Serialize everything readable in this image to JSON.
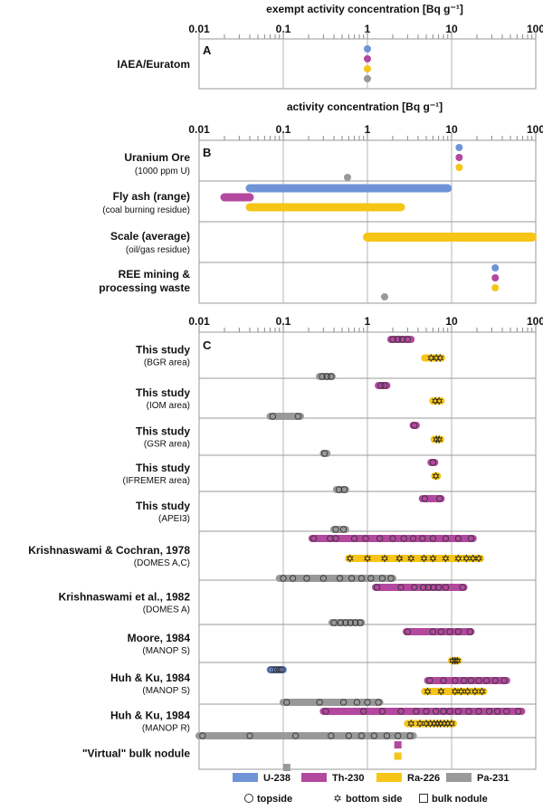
{
  "colors": {
    "U-238": "#6f93d6",
    "Th-230": "#b3489e",
    "Ra-226": "#f6c516",
    "Pa-231": "#999999",
    "grid": "#b5b5b5",
    "frame": "#9a9a9a"
  },
  "axis_ticks": [
    "0.01",
    "0.1",
    "1",
    "10",
    "100"
  ],
  "chart_data": [
    {
      "type": "scatter",
      "panel": "A",
      "xlabel": "exempt activity concentration [Bq g⁻¹]",
      "xscale": "log",
      "xlim": [
        0.01,
        100
      ],
      "rows": [
        {
          "title": "IAEA/Euratom",
          "subtitle": "",
          "points": [
            {
              "isotope": "U-238",
              "value": 1
            },
            {
              "isotope": "Th-230",
              "value": 1
            },
            {
              "isotope": "Ra-226",
              "value": 1
            },
            {
              "isotope": "Pa-231",
              "value": 1
            }
          ],
          "ranges": []
        }
      ]
    },
    {
      "type": "scatter",
      "panel": "B",
      "xlabel": "activity concentration [Bq g⁻¹]",
      "xscale": "log",
      "xlim": [
        0.01,
        100
      ],
      "rows": [
        {
          "title": "Uranium Ore",
          "subtitle": "(1000 ppm U)",
          "points": [
            {
              "isotope": "U-238",
              "value": 12.3
            },
            {
              "isotope": "Th-230",
              "value": 12.3
            },
            {
              "isotope": "Ra-226",
              "value": 12.3
            },
            {
              "isotope": "Pa-231",
              "value": 0.58
            }
          ],
          "ranges": []
        },
        {
          "title": "Fly ash (range)",
          "subtitle": "(coal burning residue)",
          "points": [],
          "ranges": [
            {
              "isotope": "U-238",
              "min": 0.04,
              "max": 9.0
            },
            {
              "isotope": "Th-230",
              "min": 0.02,
              "max": 0.04
            },
            {
              "isotope": "Ra-226",
              "min": 0.04,
              "max": 2.5
            }
          ]
        },
        {
          "title": "Scale (average)",
          "subtitle": "(oil/gas residue)",
          "points": [],
          "ranges": [
            {
              "isotope": "Ra-226",
              "min": 1.0,
              "max": 100
            }
          ]
        },
        {
          "title": "REE mining &",
          "subtitle": "processing waste",
          "subtitle_bold": true,
          "points": [
            {
              "isotope": "U-238",
              "value": 33
            },
            {
              "isotope": "Th-230",
              "value": 33
            },
            {
              "isotope": "Ra-226",
              "value": 33
            },
            {
              "isotope": "Pa-231",
              "value": 1.6
            }
          ],
          "ranges": []
        }
      ]
    },
    {
      "type": "scatter",
      "panel": "C",
      "xscale": "log",
      "xlim": [
        0.01,
        100
      ],
      "rows": [
        {
          "title": "This study",
          "subtitle": "(BGR area)",
          "groups": [
            {
              "isotope": "Th-230",
              "min": 1.9,
              "max": 3.3,
              "marker": "circle",
              "values": [
                2.0,
                2.3,
                2.6,
                3.0
              ]
            },
            {
              "isotope": "Ra-226",
              "min": 4.8,
              "max": 7.6,
              "marker": "star",
              "values": [
                5.7,
                6.6,
                7.3
              ]
            },
            {
              "isotope": "Pa-231",
              "min": 0.27,
              "max": 0.38,
              "marker": "circle",
              "values": [
                0.29,
                0.33,
                0.37
              ]
            }
          ]
        },
        {
          "title": "This study",
          "subtitle": "(IOM area)",
          "groups": [
            {
              "isotope": "Th-230",
              "min": 1.35,
              "max": 1.7,
              "marker": "circle",
              "values": [
                1.45,
                1.6
              ]
            },
            {
              "isotope": "Ra-226",
              "min": 6.0,
              "max": 7.5,
              "marker": "star",
              "values": [
                6.4,
                7.1
              ]
            },
            {
              "isotope": "Pa-231",
              "min": 0.07,
              "max": 0.16,
              "marker": "circle",
              "values": [
                0.075,
                0.15
              ]
            }
          ]
        },
        {
          "title": "This study",
          "subtitle": "(GSR area)",
          "groups": [
            {
              "isotope": "Th-230",
              "min": 3.5,
              "max": 3.8,
              "marker": "circle",
              "values": [
                3.6
              ]
            },
            {
              "isotope": "Ra-226",
              "min": 6.2,
              "max": 7.4,
              "marker": "star",
              "values": [
                6.6,
                7.1
              ]
            },
            {
              "isotope": "Pa-231",
              "min": 0.3,
              "max": 0.33,
              "marker": "circle",
              "values": [
                0.31
              ]
            }
          ]
        },
        {
          "title": "This study",
          "subtitle": "(IFREMER area)",
          "groups": [
            {
              "isotope": "Th-230",
              "min": 5.7,
              "max": 6.3,
              "marker": "circle",
              "values": [
                6.0
              ]
            },
            {
              "isotope": "Ra-226",
              "min": 6.3,
              "max": 6.8,
              "marker": "star",
              "values": [
                6.5
              ]
            },
            {
              "isotope": "Pa-231",
              "min": 0.43,
              "max": 0.55,
              "marker": "circle",
              "values": [
                0.46,
                0.53
              ]
            }
          ]
        },
        {
          "title": "This study",
          "subtitle": "(APEI3)",
          "groups": [
            {
              "isotope": "Th-230",
              "min": 4.5,
              "max": 7.5,
              "marker": "circle",
              "values": [
                4.8,
                7.2
              ]
            },
            {
              "isotope": "Pa-231",
              "min": 0.4,
              "max": 0.55,
              "marker": "circle",
              "values": [
                0.42,
                0.52
              ]
            }
          ]
        },
        {
          "title": "Krishnaswami & Cochran, 1978",
          "subtitle": "(DOMES A,C)",
          "groups": [
            {
              "isotope": "Th-230",
              "min": 0.22,
              "max": 18,
              "marker": "circle",
              "values": [
                0.23,
                0.36,
                0.42,
                0.7,
                0.95,
                1.4,
                2.0,
                2.7,
                3.5,
                4.5,
                6.0,
                8.5,
                12,
                17
              ]
            },
            {
              "isotope": "Ra-226",
              "min": 0.6,
              "max": 22,
              "marker": "star",
              "values": [
                0.62,
                1.0,
                1.6,
                2.4,
                3.3,
                4.7,
                6.0,
                8.5,
                12,
                15,
                18,
                21
              ]
            },
            {
              "isotope": "Pa-231",
              "min": 0.09,
              "max": 2.0,
              "marker": "circle",
              "values": [
                0.1,
                0.13,
                0.19,
                0.3,
                0.47,
                0.65,
                0.85,
                1.1,
                1.5,
                1.9
              ]
            }
          ]
        },
        {
          "title": "Krishnaswami et al., 1982",
          "subtitle": "(DOMES A)",
          "groups": [
            {
              "isotope": "Th-230",
              "min": 1.25,
              "max": 14,
              "marker": "circle",
              "values": [
                1.3,
                2.5,
                3.6,
                4.6,
                5.3,
                6.1,
                7.0,
                8.5,
                13.5
              ]
            },
            {
              "isotope": "Pa-231",
              "min": 0.38,
              "max": 0.85,
              "marker": "circle",
              "values": [
                0.4,
                0.48,
                0.55,
                0.63,
                0.72,
                0.82
              ]
            }
          ]
        },
        {
          "title": "Moore, 1984",
          "subtitle": "(MANOP S)",
          "groups": [
            {
              "isotope": "Th-230",
              "min": 2.9,
              "max": 17,
              "marker": "circle",
              "values": [
                3.0,
                6.0,
                7.5,
                9.5,
                12,
                16.5
              ]
            },
            {
              "isotope": "Ra-226",
              "min": 10,
              "max": 12,
              "marker": "star",
              "values": [
                10.3,
                11.0,
                11.7
              ]
            }
          ]
        },
        {
          "title": "Huh & Ku, 1984",
          "subtitle": "(MANOP S)",
          "groups": [
            {
              "isotope": "U-238",
              "min": 0.07,
              "max": 0.1,
              "marker": "circle",
              "values": [
                0.072,
                0.078,
                0.083,
                0.088,
                0.093,
                0.097
              ]
            },
            {
              "isotope": "Th-230",
              "min": 5.2,
              "max": 45,
              "marker": "circle",
              "values": [
                5.5,
                8.0,
                11,
                14,
                17,
                21,
                26,
                33,
                42
              ]
            },
            {
              "isotope": "Ra-226",
              "min": 4.8,
              "max": 24,
              "marker": "star",
              "values": [
                5.2,
                7.5,
                11,
                13,
                15.5,
                19,
                23
              ]
            },
            {
              "isotope": "Pa-231",
              "min": 0.1,
              "max": 1.4,
              "marker": "circle",
              "values": [
                0.11,
                0.27,
                0.52,
                0.75,
                1.0,
                1.35
              ]
            }
          ]
        },
        {
          "title": "Huh & Ku, 1984",
          "subtitle": "(MANOP R)",
          "groups": [
            {
              "isotope": "Th-230",
              "min": 0.3,
              "max": 68,
              "marker": "circle",
              "values": [
                0.32,
                0.9,
                1.5,
                2.5,
                3.8,
                5.0,
                6.5,
                8.0,
                9.5,
                12,
                16,
                21,
                28,
                35,
                45,
                62
              ]
            },
            {
              "isotope": "Ra-226",
              "min": 3.0,
              "max": 10.5,
              "marker": "star",
              "values": [
                3.3,
                4.2,
                5.0,
                5.6,
                6.2,
                6.8,
                7.4,
                8.2,
                9.0,
                10.0
              ]
            },
            {
              "isotope": "Pa-231",
              "min": 0.01,
              "max": 3.5,
              "marker": "circle",
              "values": [
                0.011,
                0.04,
                0.14,
                0.37,
                0.6,
                0.85,
                1.2,
                1.7,
                2.3,
                3.2
              ]
            }
          ]
        },
        {
          "title": "\"Virtual\" bulk nodule",
          "subtitle": "",
          "groups": [
            {
              "isotope": "Th-230",
              "min": 2.3,
              "max": 2.3,
              "marker": "square",
              "values": [
                2.3
              ]
            },
            {
              "isotope": "Ra-226",
              "min": 2.3,
              "max": 2.3,
              "marker": "square",
              "values": [
                2.3
              ]
            },
            {
              "isotope": "Pa-231",
              "min": 0.11,
              "max": 0.11,
              "marker": "square",
              "values": [
                0.11
              ]
            }
          ]
        }
      ]
    }
  ],
  "legend": {
    "isotopes": [
      {
        "name": "U-238",
        "color": "#6f93d6"
      },
      {
        "name": "Th-230",
        "color": "#b3489e"
      },
      {
        "name": "Ra-226",
        "color": "#f6c516"
      },
      {
        "name": "Pa-231",
        "color": "#999999"
      }
    ],
    "symbols": [
      {
        "shape": "circle",
        "label": "topside"
      },
      {
        "shape": "star",
        "label": "bottom side"
      },
      {
        "shape": "square",
        "label": "bulk nodule"
      }
    ]
  }
}
